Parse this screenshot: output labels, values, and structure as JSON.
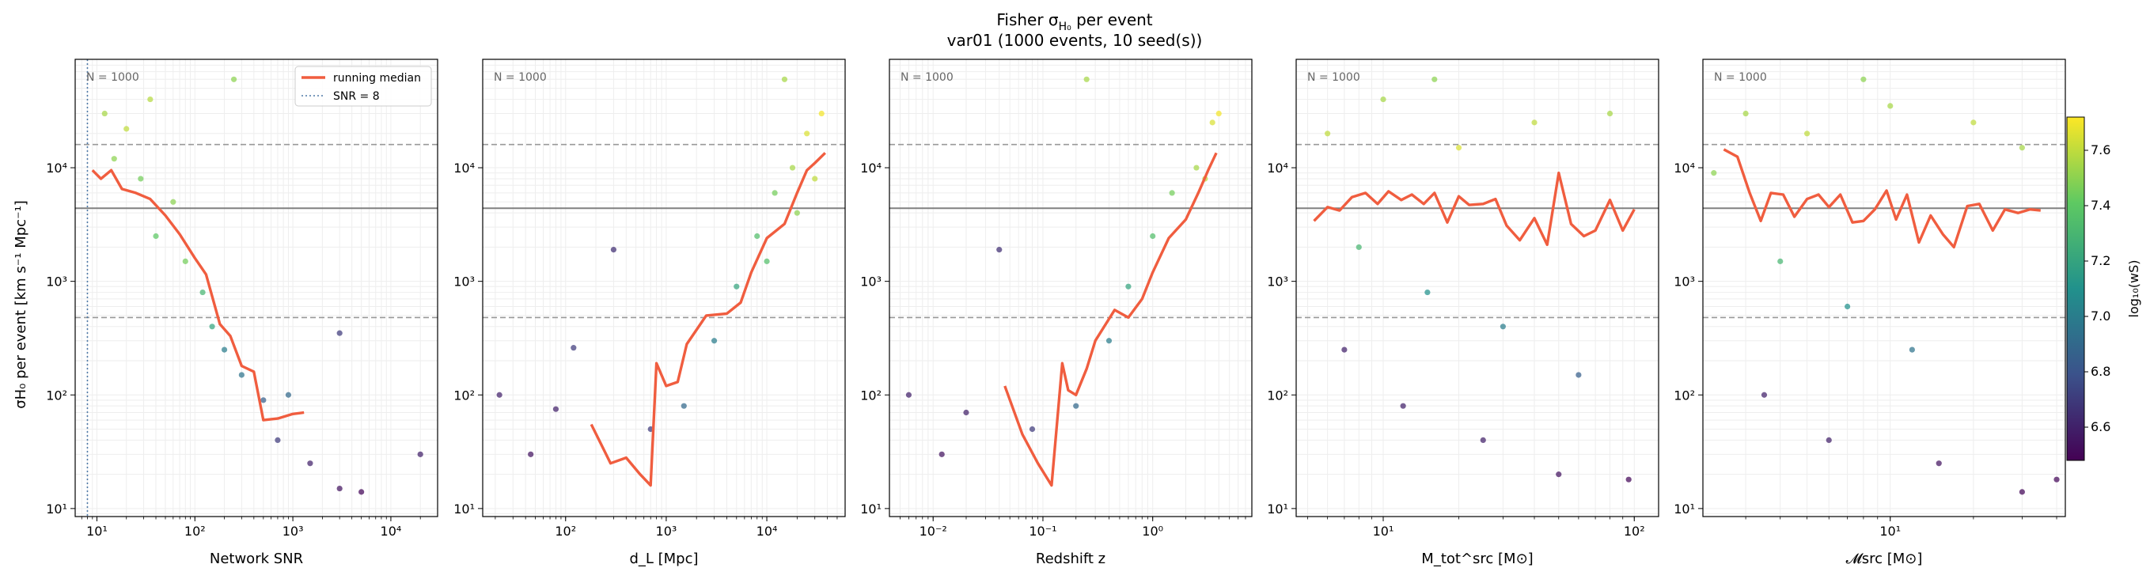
{
  "figure": {
    "title_line1": "Fisher σ",
    "title_sub": "H₀",
    "title_tail": " per event",
    "title_line2": "var01  (1000 events, 10 seed(s))",
    "ylabel": "σH₀ per event [km s⁻¹ Mpc⁻¹]",
    "n_label": "N = 1000",
    "legend": {
      "median": "running median",
      "snr": "SNR = 8"
    },
    "colorbar": {
      "label": "log₁₀(wS)",
      "ticks": [
        "6.6",
        "6.8",
        "7.0",
        "7.2",
        "7.4",
        "7.6"
      ],
      "range": [
        6.48,
        7.72
      ]
    },
    "colors": {
      "median": "#f05d3f",
      "hline": "#808080",
      "dashed": "#999999",
      "snr_line": "#4e79a7"
    }
  },
  "chart_data": [
    {
      "type": "scatter",
      "name": "network-snr",
      "xlabel": "Network SNR",
      "xlog": true,
      "xlim": [
        6,
        30000
      ],
      "ylog": true,
      "ylim": [
        8.5,
        90000
      ],
      "xticks": [
        {
          "v": 10,
          "label": "10¹"
        },
        {
          "v": 100,
          "label": "10²"
        },
        {
          "v": 1000,
          "label": "10³"
        },
        {
          "v": 10000,
          "label": "10⁴"
        }
      ],
      "yticks": [
        {
          "v": 10,
          "label": "10¹"
        },
        {
          "v": 100,
          "label": "10²"
        },
        {
          "v": 1000,
          "label": "10³"
        },
        {
          "v": 10000,
          "label": "10⁴"
        }
      ],
      "hlines": {
        "solid": 4400,
        "dashed": [
          16000,
          480
        ]
      },
      "snr_line": 8,
      "median": {
        "x": [
          9,
          11,
          14,
          18,
          25,
          35,
          50,
          70,
          100,
          130,
          180,
          230,
          300,
          400,
          500,
          700,
          1000,
          1300
        ],
        "y": [
          9500,
          8000,
          9500,
          6500,
          6000,
          5300,
          3800,
          2600,
          1600,
          1150,
          420,
          330,
          180,
          160,
          60,
          62,
          68,
          70
        ]
      },
      "points": [
        {
          "x": 12,
          "y": 30000,
          "c": 7.55
        },
        {
          "x": 20,
          "y": 22000,
          "c": 7.6
        },
        {
          "x": 35,
          "y": 40000,
          "c": 7.58
        },
        {
          "x": 15,
          "y": 12000,
          "c": 7.5
        },
        {
          "x": 28,
          "y": 8000,
          "c": 7.45
        },
        {
          "x": 60,
          "y": 5000,
          "c": 7.5
        },
        {
          "x": 40,
          "y": 2500,
          "c": 7.4
        },
        {
          "x": 80,
          "y": 1500,
          "c": 7.45
        },
        {
          "x": 120,
          "y": 800,
          "c": 7.3
        },
        {
          "x": 150,
          "y": 400,
          "c": 7.2
        },
        {
          "x": 200,
          "y": 250,
          "c": 7.0
        },
        {
          "x": 300,
          "y": 150,
          "c": 6.95
        },
        {
          "x": 500,
          "y": 90,
          "c": 6.85
        },
        {
          "x": 700,
          "y": 40,
          "c": 6.7
        },
        {
          "x": 1500,
          "y": 25,
          "c": 6.6
        },
        {
          "x": 3000,
          "y": 15,
          "c": 6.55
        },
        {
          "x": 20000,
          "y": 30,
          "c": 6.6
        },
        {
          "x": 5000,
          "y": 14,
          "c": 6.5
        },
        {
          "x": 250,
          "y": 60000,
          "c": 7.5
        },
        {
          "x": 3000,
          "y": 350,
          "c": 6.7
        },
        {
          "x": 900,
          "y": 100,
          "c": 6.9
        }
      ]
    },
    {
      "type": "scatter",
      "name": "luminosity-distance",
      "xlabel": "d_L [Mpc]",
      "xlog": true,
      "xlim": [
        15,
        60000
      ],
      "ylog": true,
      "ylim": [
        8.5,
        90000
      ],
      "xticks": [
        {
          "v": 100,
          "label": "10²"
        },
        {
          "v": 1000,
          "label": "10³"
        },
        {
          "v": 10000,
          "label": "10⁴"
        }
      ],
      "yticks": [
        {
          "v": 10,
          "label": "10¹"
        },
        {
          "v": 100,
          "label": "10²"
        },
        {
          "v": 1000,
          "label": "10³"
        },
        {
          "v": 10000,
          "label": "10⁴"
        }
      ],
      "hlines": {
        "solid": 4400,
        "dashed": [
          16000,
          480
        ]
      },
      "median": {
        "x": [
          180,
          280,
          400,
          550,
          700,
          800,
          1000,
          1300,
          1600,
          2500,
          4000,
          5500,
          7000,
          10000,
          15000,
          20000,
          25000,
          30000,
          38000
        ],
        "y": [
          55,
          25,
          28,
          20,
          16,
          190,
          120,
          130,
          280,
          500,
          520,
          650,
          1200,
          2400,
          3200,
          6000,
          9500,
          11000,
          13500
        ]
      },
      "points": [
        {
          "x": 22,
          "y": 100,
          "c": 6.6
        },
        {
          "x": 45,
          "y": 30,
          "c": 6.55
        },
        {
          "x": 80,
          "y": 75,
          "c": 6.6
        },
        {
          "x": 120,
          "y": 260,
          "c": 6.7
        },
        {
          "x": 300,
          "y": 1900,
          "c": 6.65
        },
        {
          "x": 700,
          "y": 50,
          "c": 6.7
        },
        {
          "x": 1500,
          "y": 80,
          "c": 6.9
        },
        {
          "x": 3000,
          "y": 300,
          "c": 7.0
        },
        {
          "x": 5000,
          "y": 900,
          "c": 7.2
        },
        {
          "x": 8000,
          "y": 2500,
          "c": 7.35
        },
        {
          "x": 12000,
          "y": 6000,
          "c": 7.45
        },
        {
          "x": 18000,
          "y": 10000,
          "c": 7.55
        },
        {
          "x": 25000,
          "y": 20000,
          "c": 7.65
        },
        {
          "x": 35000,
          "y": 30000,
          "c": 7.7
        },
        {
          "x": 30000,
          "y": 8000,
          "c": 7.6
        },
        {
          "x": 20000,
          "y": 4000,
          "c": 7.5
        },
        {
          "x": 10000,
          "y": 1500,
          "c": 7.35
        },
        {
          "x": 15000,
          "y": 60000,
          "c": 7.55
        }
      ]
    },
    {
      "type": "scatter",
      "name": "redshift",
      "xlabel": "Redshift z",
      "xlog": true,
      "xlim": [
        0.004,
        8
      ],
      "ylog": true,
      "ylim": [
        8.5,
        90000
      ],
      "xticks": [
        {
          "v": 0.01,
          "label": "10⁻²"
        },
        {
          "v": 0.1,
          "label": "10⁻¹"
        },
        {
          "v": 1,
          "label": "10⁰"
        }
      ],
      "yticks": [
        {
          "v": 10,
          "label": "10¹"
        },
        {
          "v": 100,
          "label": "10²"
        },
        {
          "v": 1000,
          "label": "10³"
        },
        {
          "v": 10000,
          "label": "10⁴"
        }
      ],
      "hlines": {
        "solid": 4400,
        "dashed": [
          16000,
          480
        ]
      },
      "median": {
        "x": [
          0.045,
          0.065,
          0.09,
          0.12,
          0.15,
          0.17,
          0.2,
          0.25,
          0.3,
          0.45,
          0.6,
          0.8,
          1.0,
          1.4,
          2.0,
          2.6,
          3.2,
          3.8
        ],
        "y": [
          120,
          45,
          25,
          16,
          190,
          110,
          100,
          170,
          300,
          560,
          480,
          700,
          1200,
          2400,
          3500,
          6000,
          9500,
          13500
        ]
      },
      "points": [
        {
          "x": 0.006,
          "y": 100,
          "c": 6.6
        },
        {
          "x": 0.012,
          "y": 30,
          "c": 6.55
        },
        {
          "x": 0.02,
          "y": 70,
          "c": 6.6
        },
        {
          "x": 0.04,
          "y": 1900,
          "c": 6.65
        },
        {
          "x": 0.08,
          "y": 50,
          "c": 6.7
        },
        {
          "x": 0.2,
          "y": 80,
          "c": 6.9
        },
        {
          "x": 0.4,
          "y": 300,
          "c": 7.0
        },
        {
          "x": 0.6,
          "y": 900,
          "c": 7.2
        },
        {
          "x": 1.0,
          "y": 2500,
          "c": 7.35
        },
        {
          "x": 1.5,
          "y": 6000,
          "c": 7.45
        },
        {
          "x": 2.5,
          "y": 10000,
          "c": 7.55
        },
        {
          "x": 3.5,
          "y": 25000,
          "c": 7.65
        },
        {
          "x": 4.0,
          "y": 30000,
          "c": 7.7
        },
        {
          "x": 3.0,
          "y": 8000,
          "c": 7.6
        },
        {
          "x": 0.25,
          "y": 60000,
          "c": 7.55
        }
      ]
    },
    {
      "type": "scatter",
      "name": "total-source-mass",
      "xlabel": "M_tot^src [M⊙]",
      "xlog": true,
      "xlim": [
        4.5,
        125
      ],
      "ylog": true,
      "ylim": [
        8.5,
        90000
      ],
      "xticks": [
        {
          "v": 10,
          "label": "10¹"
        },
        {
          "v": 100,
          "label": "10²"
        }
      ],
      "yticks": [
        {
          "v": 10,
          "label": "10¹"
        },
        {
          "v": 100,
          "label": "10²"
        },
        {
          "v": 1000,
          "label": "10³"
        },
        {
          "v": 10000,
          "label": "10⁴"
        }
      ],
      "hlines": {
        "solid": 4400,
        "dashed": [
          16000,
          480
        ]
      },
      "median": {
        "x": [
          5.3,
          6,
          6.7,
          7.5,
          8.5,
          9.5,
          10.5,
          11.8,
          13,
          14.5,
          16,
          18,
          20,
          22,
          25,
          28,
          31,
          35,
          40,
          45,
          50,
          56,
          63,
          70,
          80,
          90,
          100
        ],
        "y": [
          3400,
          4500,
          4200,
          5500,
          6000,
          4800,
          6200,
          5200,
          5800,
          4800,
          6000,
          3300,
          5600,
          4700,
          4800,
          5300,
          3100,
          2300,
          3600,
          2100,
          9000,
          3200,
          2500,
          2800,
          5200,
          2800,
          4300
        ]
      },
      "points": [
        {
          "x": 6,
          "y": 20000,
          "c": 7.6
        },
        {
          "x": 10,
          "y": 40000,
          "c": 7.55
        },
        {
          "x": 20,
          "y": 15000,
          "c": 7.65
        },
        {
          "x": 40,
          "y": 25000,
          "c": 7.6
        },
        {
          "x": 80,
          "y": 30000,
          "c": 7.55
        },
        {
          "x": 8,
          "y": 2000,
          "c": 7.3
        },
        {
          "x": 15,
          "y": 800,
          "c": 7.1
        },
        {
          "x": 30,
          "y": 400,
          "c": 7.0
        },
        {
          "x": 60,
          "y": 150,
          "c": 6.85
        },
        {
          "x": 7,
          "y": 250,
          "c": 6.6
        },
        {
          "x": 12,
          "y": 80,
          "c": 6.6
        },
        {
          "x": 25,
          "y": 40,
          "c": 6.6
        },
        {
          "x": 50,
          "y": 20,
          "c": 6.55
        },
        {
          "x": 95,
          "y": 18,
          "c": 6.5
        },
        {
          "x": 16,
          "y": 60000,
          "c": 7.5
        }
      ]
    },
    {
      "type": "scatter",
      "name": "chirp-mass",
      "xlabel": "𝓜src [M⊙]",
      "xlog": true,
      "xlim": [
        2.1,
        43
      ],
      "ylog": true,
      "ylim": [
        8.5,
        90000
      ],
      "xticks": [
        {
          "v": 10,
          "label": "10¹"
        }
      ],
      "yticks": [
        {
          "v": 10,
          "label": "10¹"
        },
        {
          "v": 100,
          "label": "10²"
        },
        {
          "v": 1000,
          "label": "10³"
        },
        {
          "v": 10000,
          "label": "10⁴"
        }
      ],
      "hlines": {
        "solid": 4400,
        "dashed": [
          16000,
          480
        ]
      },
      "median": {
        "x": [
          2.5,
          2.8,
          3.1,
          3.4,
          3.7,
          4.1,
          4.5,
          5.0,
          5.5,
          6.0,
          6.6,
          7.3,
          8.0,
          8.8,
          9.7,
          10.5,
          11.5,
          12.7,
          14,
          15.5,
          17,
          19,
          21,
          23.5,
          26,
          29,
          32,
          35
        ],
        "y": [
          14500,
          12500,
          6000,
          3400,
          6000,
          5800,
          3700,
          5300,
          5800,
          4500,
          5800,
          3300,
          3400,
          4300,
          6300,
          3500,
          5800,
          2200,
          3800,
          2600,
          2000,
          4600,
          4800,
          2800,
          4300,
          4000,
          4300,
          4200
        ]
      },
      "points": [
        {
          "x": 2.3,
          "y": 9000,
          "c": 7.5
        },
        {
          "x": 3,
          "y": 30000,
          "c": 7.55
        },
        {
          "x": 5,
          "y": 20000,
          "c": 7.6
        },
        {
          "x": 10,
          "y": 35000,
          "c": 7.55
        },
        {
          "x": 20,
          "y": 25000,
          "c": 7.6
        },
        {
          "x": 30,
          "y": 15000,
          "c": 7.55
        },
        {
          "x": 4,
          "y": 1500,
          "c": 7.3
        },
        {
          "x": 7,
          "y": 600,
          "c": 7.1
        },
        {
          "x": 12,
          "y": 250,
          "c": 6.95
        },
        {
          "x": 3.5,
          "y": 100,
          "c": 6.6
        },
        {
          "x": 6,
          "y": 40,
          "c": 6.6
        },
        {
          "x": 15,
          "y": 25,
          "c": 6.55
        },
        {
          "x": 30,
          "y": 14,
          "c": 6.5
        },
        {
          "x": 40,
          "y": 18,
          "c": 6.5
        },
        {
          "x": 8,
          "y": 60000,
          "c": 7.5
        }
      ]
    }
  ]
}
